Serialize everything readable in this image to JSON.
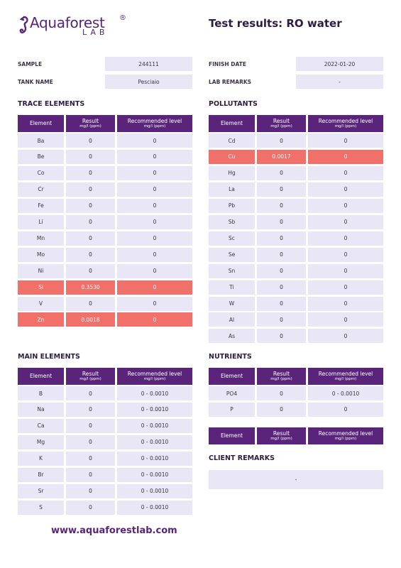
{
  "header": {
    "brand": "Aquaforest",
    "registered": "®",
    "brand_sub": "LAB",
    "title": "Test results: RO water"
  },
  "info": {
    "left": [
      {
        "label": "SAMPLE",
        "value": "244111"
      },
      {
        "label": "TANK NAME",
        "value": "Pesciaio"
      }
    ],
    "right": [
      {
        "label": "FINISH DATE",
        "value": "2022-01-20"
      },
      {
        "label": "LAB REMARKS",
        "value": "-"
      }
    ]
  },
  "sections": [
    {
      "title": "TRACE ELEMENTS",
      "columns": [
        {
          "label": "Element"
        },
        {
          "label": "Result",
          "unit": "mg/l (ppm)"
        },
        {
          "label": "Recommended level",
          "unit": "mg/l (ppm)"
        }
      ],
      "rows": [
        {
          "cells": [
            "Ba",
            "0",
            "0"
          ]
        },
        {
          "cells": [
            "Be",
            "0",
            "0"
          ]
        },
        {
          "cells": [
            "Co",
            "0",
            "0"
          ]
        },
        {
          "cells": [
            "Cr",
            "0",
            "0"
          ]
        },
        {
          "cells": [
            "Fe",
            "0",
            "0"
          ]
        },
        {
          "cells": [
            "Li",
            "0",
            "0"
          ]
        },
        {
          "cells": [
            "Mn",
            "0",
            "0"
          ]
        },
        {
          "cells": [
            "Mo",
            "0",
            "0"
          ]
        },
        {
          "cells": [
            "Ni",
            "0",
            "0"
          ]
        },
        {
          "cells": [
            "Si",
            "0.3530",
            "0"
          ],
          "alert": true
        },
        {
          "cells": [
            "V",
            "0",
            "0"
          ]
        },
        {
          "cells": [
            "Zn",
            "0.0018",
            "0"
          ],
          "alert": true
        }
      ]
    },
    {
      "title": "POLLUTANTS",
      "columns": [
        {
          "label": "Element"
        },
        {
          "label": "Result",
          "unit": "mg/l (ppm)"
        },
        {
          "label": "Recommended level",
          "unit": "mg/l (ppm)"
        }
      ],
      "rows": [
        {
          "cells": [
            "Cd",
            "0",
            "0"
          ]
        },
        {
          "cells": [
            "Cu",
            "0.0017",
            "0"
          ],
          "alert": true
        },
        {
          "cells": [
            "Hg",
            "0",
            "0"
          ]
        },
        {
          "cells": [
            "La",
            "0",
            "0"
          ]
        },
        {
          "cells": [
            "Pb",
            "0",
            "0"
          ]
        },
        {
          "cells": [
            "Sb",
            "0",
            "0"
          ]
        },
        {
          "cells": [
            "Sc",
            "0",
            "0"
          ]
        },
        {
          "cells": [
            "Se",
            "0",
            "0"
          ]
        },
        {
          "cells": [
            "Sn",
            "0",
            "0"
          ]
        },
        {
          "cells": [
            "Ti",
            "0",
            "0"
          ]
        },
        {
          "cells": [
            "W",
            "0",
            "0"
          ]
        },
        {
          "cells": [
            "Al",
            "0",
            "0"
          ]
        },
        {
          "cells": [
            "As",
            "0",
            "0"
          ]
        }
      ]
    },
    {
      "title": "MAIN ELEMENTS",
      "columns": [
        {
          "label": "Element"
        },
        {
          "label": "Result",
          "unit": "mg/l (ppm)"
        },
        {
          "label": "Recommended level",
          "unit": "mg/l (ppm)"
        }
      ],
      "rows": [
        {
          "cells": [
            "B",
            "0",
            "0 - 0.0010"
          ]
        },
        {
          "cells": [
            "Na",
            "0",
            "0 - 0.0010"
          ]
        },
        {
          "cells": [
            "Ca",
            "0",
            "0 - 0.0010"
          ]
        },
        {
          "cells": [
            "Mg",
            "0",
            "0 - 0.0010"
          ]
        },
        {
          "cells": [
            "K",
            "0",
            "0 - 0.0010"
          ]
        },
        {
          "cells": [
            "Br",
            "0",
            "0 - 0.0010"
          ]
        },
        {
          "cells": [
            "Sr",
            "0",
            "0 - 0.0010"
          ]
        },
        {
          "cells": [
            "S",
            "0",
            "0 - 0.0010"
          ]
        }
      ]
    },
    {
      "title": "NUTRIENTS",
      "columns": [
        {
          "label": "Element"
        },
        {
          "label": "Result",
          "unit": "mg/l (ppm)"
        },
        {
          "label": "Recommended level",
          "unit": "mg/l (ppm)"
        }
      ],
      "rows": [
        {
          "cells": [
            "PO4",
            "0",
            "0 - 0.0010"
          ]
        },
        {
          "cells": [
            "P",
            "0",
            "0"
          ]
        }
      ]
    },
    {
      "columns": [
        {
          "label": "Element"
        },
        {
          "label": "Result",
          "unit": "mg/l (ppm)"
        },
        {
          "label": "Recommended level",
          "unit": "mg/l (ppm)"
        }
      ],
      "rows": []
    }
  ],
  "client_remarks": {
    "title": "CLIENT REMARKS",
    "text": "-"
  },
  "footer": {
    "url": "www.aquaforestlab.com"
  }
}
